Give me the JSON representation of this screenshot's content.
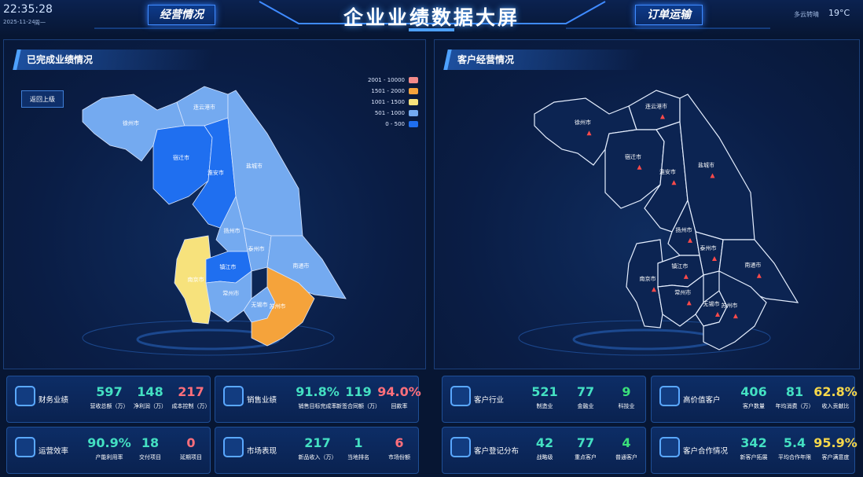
{
  "header": {
    "time": "22:35:28",
    "date": "2025-11-24",
    "weekday": "周一",
    "tab_left": "经营情况",
    "title": "企业业绩数据大屏",
    "tab_right": "订单运输",
    "weather": "多云转晴",
    "temperature": "19°C"
  },
  "left_panel": {
    "title": "已完成业绩情况",
    "back_button": "返回上级",
    "legend": [
      {
        "label": "2001 - 10000",
        "color": "#f28a8a"
      },
      {
        "label": "1501 - 2000",
        "color": "#f5a33b"
      },
      {
        "label": "1001 - 1500",
        "color": "#f7e27c"
      },
      {
        "label": "501 - 1000",
        "color": "#74aaf0"
      },
      {
        "label": "0 - 500",
        "color": "#1f6ff0"
      }
    ],
    "regions": [
      "徐州市",
      "连云港市",
      "宿迁市",
      "淮安市",
      "盐城市",
      "扬州市",
      "泰州市",
      "南通市",
      "南京市",
      "镇江市",
      "常州市",
      "无锡市",
      "苏州市"
    ]
  },
  "right_panel": {
    "title": "客户经营情况",
    "regions": [
      "徐州市",
      "连云港市",
      "宿迁市",
      "淮安市",
      "盐城市",
      "扬州市",
      "泰州市",
      "南通市",
      "南京市",
      "镇江市",
      "常州市",
      "无锡市",
      "苏州市"
    ]
  },
  "cards": [
    {
      "title": "财务业绩",
      "stats": [
        {
          "value": "597",
          "label": "营收总额（万）"
        },
        {
          "value": "148",
          "label": "净利润（万）"
        },
        {
          "value": "217",
          "label": "成本控制（万）"
        }
      ]
    },
    {
      "title": "销售业绩",
      "stats": [
        {
          "value": "91.8%",
          "label": "销售目标完成率"
        },
        {
          "value": "119",
          "label": "新签合同额（万）"
        },
        {
          "value": "94.0%",
          "label": "回款率"
        }
      ]
    },
    {
      "title": "运营效率",
      "stats": [
        {
          "value": "90.9%",
          "label": "产能利用率"
        },
        {
          "value": "18",
          "label": "交付项目"
        },
        {
          "value": "0",
          "label": "延期项目"
        }
      ]
    },
    {
      "title": "市场表现",
      "stats": [
        {
          "value": "217",
          "label": "新品收入（万）"
        },
        {
          "value": "1",
          "label": "当地排名"
        },
        {
          "value": "6",
          "label": "市场份额"
        }
      ]
    },
    {
      "title": "客户行业",
      "stats": [
        {
          "value": "521",
          "label": "制造业"
        },
        {
          "value": "77",
          "label": "金融业"
        },
        {
          "value": "9",
          "label": "科技业"
        }
      ]
    },
    {
      "title": "高价值客户",
      "stats": [
        {
          "value": "406",
          "label": "客户数量"
        },
        {
          "value": "81",
          "label": "年均消费（万）"
        },
        {
          "value": "62.8%",
          "label": "收入贡献比"
        }
      ]
    },
    {
      "title": "客户登记分布",
      "stats": [
        {
          "value": "42",
          "label": "战略级"
        },
        {
          "value": "77",
          "label": "重点客户"
        },
        {
          "value": "4",
          "label": "普通客户"
        }
      ]
    },
    {
      "title": "客户合作情况",
      "stats": [
        {
          "value": "342",
          "label": "新客户拓展"
        },
        {
          "value": "5.4",
          "label": "平均合作年限"
        },
        {
          "value": "95.9%",
          "label": "客户满意度"
        }
      ]
    }
  ]
}
